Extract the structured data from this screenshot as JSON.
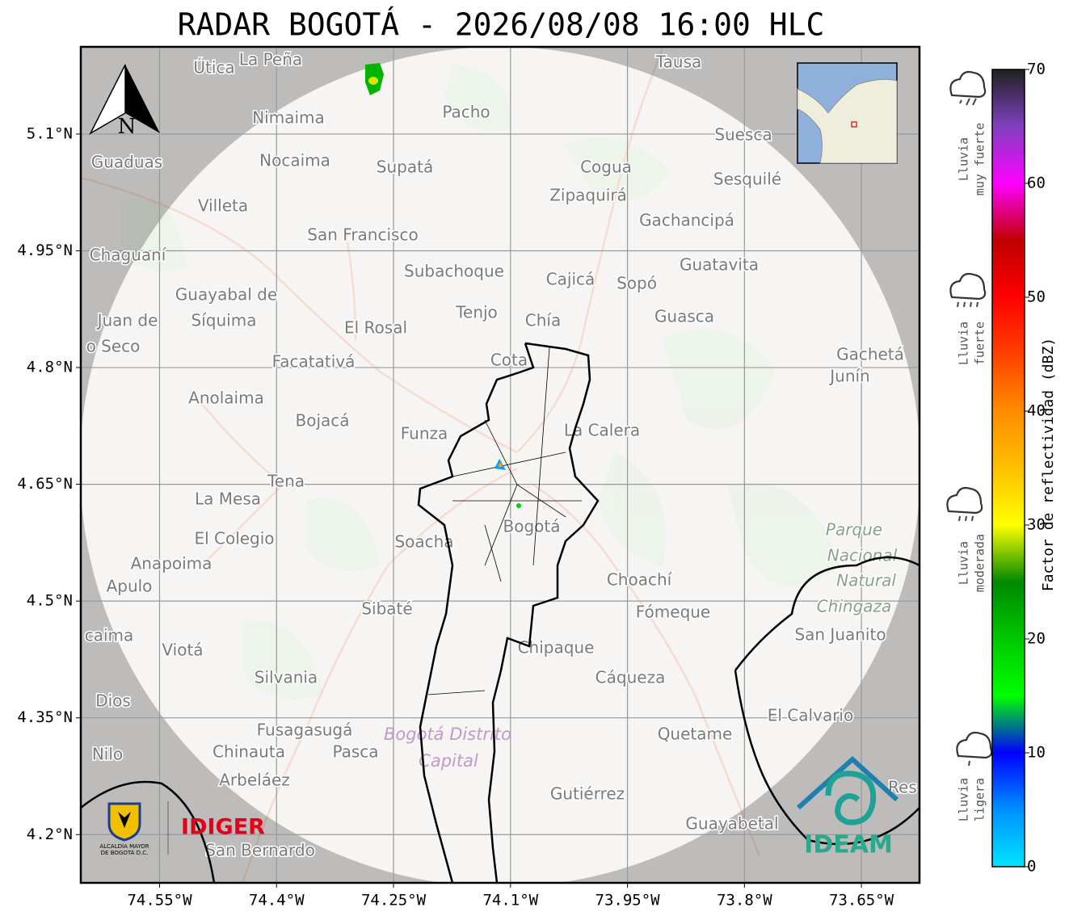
{
  "map": {
    "title": "RADAR BOGOTÁ - 2026/08/08 16:00 HLC",
    "xlim": [
      -74.651,
      -73.5755
    ],
    "ylim": [
      4.138,
      5.212
    ],
    "grid": true,
    "xticks": [
      {
        "value": -74.55,
        "label": "74.55°W"
      },
      {
        "value": -74.4,
        "label": "74.4°W"
      },
      {
        "value": -74.25,
        "label": "74.25°W"
      },
      {
        "value": -74.1,
        "label": "74.1°W"
      },
      {
        "value": -73.95,
        "label": "73.95°W"
      },
      {
        "value": -73.8,
        "label": "73.8°W"
      },
      {
        "value": -73.65,
        "label": "73.65°W"
      }
    ],
    "yticks": [
      {
        "value": 5.1,
        "label": "5.1°N"
      },
      {
        "value": 4.95,
        "label": "4.95°N"
      },
      {
        "value": 4.8,
        "label": "4.8°N"
      },
      {
        "value": 4.65,
        "label": "4.65°N"
      },
      {
        "value": 4.5,
        "label": "4.5°N"
      },
      {
        "value": 4.35,
        "label": "4.35°N"
      },
      {
        "value": 4.2,
        "label": "4.2°N"
      }
    ],
    "north_label": "N",
    "places": [
      "Útica",
      "La Peña",
      "Tausa",
      "Pacho",
      "Nimaima",
      "Suesca",
      "Guaduas",
      "Nocaima",
      "Supatá",
      "Cogua",
      "Zipaquirá",
      "Sesquilé",
      "Villeta",
      "Gachancipá",
      "San Francisco",
      "Chaguaní",
      "Guatavita",
      "Subachoque",
      "Cajicá",
      "Sopó",
      "Guayabal de",
      "Síquima",
      "Juan de",
      "Tenjo",
      "Chía",
      "Guasca",
      "El Rosal",
      "o Seco",
      "Facatativá",
      "Cota",
      "Gachetá",
      "Junín",
      "Anolaima",
      "Bojacá",
      "Funza",
      "La Calera",
      "Tena",
      "La Mesa",
      "Bogotá",
      "Soacha",
      "El Colegio",
      "Anapoima",
      "Apulo",
      "Choachí",
      "Sibaté",
      "Fómeque",
      "San Juanito",
      "caima",
      "Viotá",
      "Chipaque",
      "Silvania",
      "Cáqueza",
      "Dios",
      "El Calvario",
      "Fusagasugá",
      "Quetame",
      "Nilo",
      "Chinauta",
      "Pasca",
      "Arbeláez",
      "Gutiérrez",
      "Guayabetal",
      "San Bernardo",
      "Res"
    ],
    "park_labels": [
      "Parque",
      "Nacional",
      "Natural",
      "Chingaza"
    ],
    "district_labels": [
      "Bogotá Distrito",
      "Capital"
    ],
    "colorbar": {
      "label": "Factor de reflectividad (dBZ)",
      "clim": [
        0,
        70
      ],
      "ticks": [
        0,
        10,
        20,
        30,
        40,
        50,
        60,
        70
      ],
      "colors": [
        "#00e5ff",
        "#0090ff",
        "#0000ff",
        "#00ff00",
        "#00c800",
        "#008800",
        "#ffff00",
        "#ffc000",
        "#ff8c00",
        "#ff4000",
        "#ff0000",
        "#c00000",
        "#ff00ff",
        "#8040c0",
        "#202020"
      ]
    },
    "intensity": [
      {
        "lines": [
          "Lluvia",
          "muy fuerte"
        ]
      },
      {
        "lines": [
          "Lluvia",
          "fuerte"
        ]
      },
      {
        "lines": [
          "Lluvia",
          "moderada"
        ]
      },
      {
        "lines": [
          "Lluvia",
          "ligera"
        ]
      }
    ],
    "logos": {
      "alcaldia": [
        "ALCALDÍA MAYOR",
        "DE BOGOTÁ D.C."
      ],
      "idiger": "IDIGER",
      "ideam": "IDEAM"
    }
  }
}
